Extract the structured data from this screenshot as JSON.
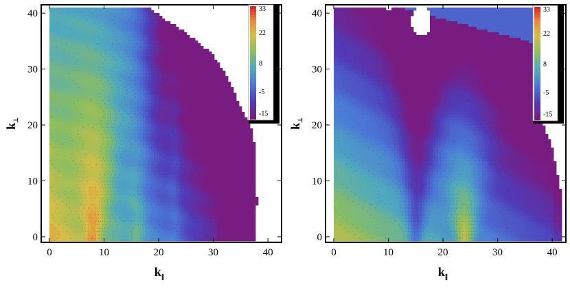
{
  "chart_data": [
    {
      "type": "heatmap",
      "title": "",
      "xlabel": "k",
      "xlabel_subscript": "∥",
      "ylabel": "k",
      "ylabel_subscript": "⊥",
      "xlim": [
        -1,
        42
      ],
      "ylim": [
        -0.5,
        41
      ],
      "xticks": [
        0,
        10,
        20,
        30,
        40
      ],
      "yticks": [
        0,
        10,
        20,
        30,
        40
      ],
      "colorbar": {
        "ticks": [
          33,
          22,
          8,
          -5,
          -15
        ],
        "range": [
          -18,
          34
        ]
      },
      "ridges_kpar": [
        8,
        16,
        23
      ],
      "boundary": [
        [
          0,
          -0.5
        ],
        [
          37.6,
          -0.5
        ],
        [
          38,
          6
        ],
        [
          37.8,
          13
        ],
        [
          37.4,
          18
        ],
        [
          36.5,
          21
        ],
        [
          35.5,
          22
        ],
        [
          33.8,
          26
        ],
        [
          32,
          29.5
        ],
        [
          30,
          32.5
        ],
        [
          27.5,
          34.6
        ],
        [
          25,
          36.5
        ],
        [
          21,
          39
        ],
        [
          18.5,
          40.8
        ],
        [
          0,
          41
        ]
      ]
    },
    {
      "type": "heatmap",
      "title": "",
      "xlabel": "k",
      "xlabel_subscript": "∥",
      "ylabel": "k",
      "ylabel_subscript": "⊥",
      "xlim": [
        -1,
        42
      ],
      "ylim": [
        -0.5,
        41
      ],
      "xticks": [
        0,
        10,
        20,
        30,
        40
      ],
      "yticks": [
        0,
        10,
        20,
        30,
        40
      ],
      "colorbar": {
        "ticks": [
          33,
          22,
          8,
          -5,
          -15
        ],
        "range": [
          -18,
          34
        ]
      },
      "peak_kpar": 24,
      "valley_kpar": 15,
      "hole_center": [
        16,
        38.5
      ]
    }
  ]
}
